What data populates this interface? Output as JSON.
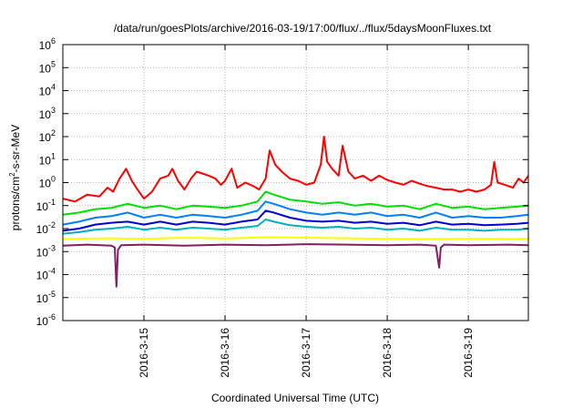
{
  "chart_data": {
    "type": "line",
    "title": "/data/run/goesPlots/archive/2016-03-19/17:00/flux/../flux/5daysMoonFluxes.txt",
    "xlabel": "Coordinated Universal Time (UTC)",
    "ylabel_parts": {
      "base": "protons/cm",
      "sup": "2",
      "rest": "-s-sr-MeV"
    },
    "xlim": [
      0,
      5.74
    ],
    "ylim_exp": [
      -6,
      6
    ],
    "yscale": "log",
    "grid": true,
    "x_ticks": [
      {
        "x": 1,
        "label": "2016-3-15"
      },
      {
        "x": 2,
        "label": "2016-3-16"
      },
      {
        "x": 3,
        "label": "2016-3-17"
      },
      {
        "x": 4,
        "label": "2016-3-18"
      },
      {
        "x": 5,
        "label": "2016-3-19"
      }
    ],
    "y_ticks": [
      {
        "exp": -6,
        "label": "10",
        "sup": "-6"
      },
      {
        "exp": -5,
        "label": "10",
        "sup": "-5"
      },
      {
        "exp": -4,
        "label": "10",
        "sup": "-4"
      },
      {
        "exp": -3,
        "label": "10",
        "sup": "-3"
      },
      {
        "exp": -2,
        "label": "10",
        "sup": "-2"
      },
      {
        "exp": -1,
        "label": "10",
        "sup": "-1"
      },
      {
        "exp": 0,
        "label": "10",
        "sup": "0"
      },
      {
        "exp": 1,
        "label": "10",
        "sup": "1"
      },
      {
        "exp": 2,
        "label": "10",
        "sup": "2"
      },
      {
        "exp": 3,
        "label": "10",
        "sup": "3"
      },
      {
        "exp": 4,
        "label": "10",
        "sup": "4"
      },
      {
        "exp": 5,
        "label": "10",
        "sup": "5"
      },
      {
        "exp": 6,
        "label": "10",
        "sup": "6"
      }
    ],
    "series": [
      {
        "color": "#ff0000",
        "x": [
          0,
          0.15,
          0.3,
          0.45,
          0.55,
          0.62,
          0.7,
          0.78,
          0.85,
          0.92,
          1.0,
          1.1,
          1.2,
          1.3,
          1.35,
          1.42,
          1.5,
          1.58,
          1.65,
          1.72,
          1.8,
          1.88,
          1.95,
          2.0,
          2.08,
          2.15,
          2.25,
          2.35,
          2.42,
          2.5,
          2.55,
          2.62,
          2.7,
          2.8,
          2.9,
          3.0,
          3.1,
          3.18,
          3.22,
          3.26,
          3.32,
          3.4,
          3.45,
          3.52,
          3.6,
          3.7,
          3.8,
          3.9,
          4.0,
          4.1,
          4.2,
          4.3,
          4.4,
          4.5,
          4.6,
          4.7,
          4.8,
          4.9,
          5.0,
          5.1,
          5.2,
          5.28,
          5.32,
          5.36,
          5.45,
          5.55,
          5.62,
          5.68,
          5.74
        ],
        "y": [
          0.2,
          0.15,
          0.3,
          0.25,
          0.6,
          0.4,
          1.5,
          4,
          1.2,
          0.5,
          0.2,
          0.4,
          1.5,
          2,
          4,
          1.2,
          0.5,
          1.5,
          3,
          2.5,
          2,
          1.5,
          0.8,
          1.2,
          4,
          0.6,
          1.0,
          0.7,
          0.5,
          1.5,
          25,
          6,
          3,
          1.5,
          1.2,
          0.8,
          1.0,
          6,
          100,
          8,
          4,
          2,
          40,
          3,
          1.5,
          2,
          1.2,
          2,
          1.3,
          1.0,
          0.8,
          1.2,
          0.9,
          0.7,
          0.6,
          0.5,
          0.5,
          0.4,
          0.5,
          0.4,
          0.5,
          0.8,
          8,
          1.0,
          0.8,
          0.6,
          1.5,
          1.0,
          2
        ]
      },
      {
        "color": "#00e000",
        "x": [
          0,
          0.2,
          0.4,
          0.6,
          0.8,
          1.0,
          1.2,
          1.4,
          1.6,
          1.8,
          2.0,
          2.2,
          2.4,
          2.5,
          2.6,
          2.8,
          3.0,
          3.2,
          3.4,
          3.6,
          3.8,
          4.0,
          4.2,
          4.4,
          4.6,
          4.8,
          5.0,
          5.2,
          5.4,
          5.6,
          5.74
        ],
        "y": [
          0.04,
          0.05,
          0.07,
          0.08,
          0.12,
          0.08,
          0.1,
          0.07,
          0.1,
          0.09,
          0.08,
          0.1,
          0.15,
          0.4,
          0.3,
          0.18,
          0.15,
          0.12,
          0.14,
          0.1,
          0.12,
          0.09,
          0.1,
          0.07,
          0.12,
          0.08,
          0.09,
          0.07,
          0.08,
          0.09,
          0.1
        ]
      },
      {
        "color": "#0080ff",
        "x": [
          0,
          0.2,
          0.4,
          0.6,
          0.8,
          1.0,
          1.2,
          1.4,
          1.6,
          1.8,
          2.0,
          2.2,
          2.4,
          2.5,
          2.6,
          2.8,
          3.0,
          3.2,
          3.4,
          3.6,
          3.8,
          4.0,
          4.2,
          4.4,
          4.6,
          4.8,
          5.0,
          5.2,
          5.4,
          5.6,
          5.74
        ],
        "y": [
          0.015,
          0.02,
          0.03,
          0.035,
          0.05,
          0.03,
          0.04,
          0.03,
          0.04,
          0.035,
          0.03,
          0.04,
          0.06,
          0.15,
          0.12,
          0.07,
          0.05,
          0.04,
          0.05,
          0.04,
          0.05,
          0.035,
          0.04,
          0.03,
          0.05,
          0.03,
          0.035,
          0.03,
          0.03,
          0.035,
          0.04
        ]
      },
      {
        "color": "#0000d0",
        "x": [
          0,
          0.2,
          0.4,
          0.6,
          0.8,
          1.0,
          1.2,
          1.4,
          1.6,
          1.8,
          2.0,
          2.2,
          2.4,
          2.5,
          2.6,
          2.8,
          3.0,
          3.2,
          3.4,
          3.6,
          3.8,
          4.0,
          4.2,
          4.4,
          4.6,
          4.8,
          5.0,
          5.2,
          5.4,
          5.6,
          5.74
        ],
        "y": [
          0.008,
          0.01,
          0.015,
          0.018,
          0.02,
          0.015,
          0.02,
          0.015,
          0.02,
          0.018,
          0.015,
          0.02,
          0.025,
          0.06,
          0.05,
          0.03,
          0.022,
          0.02,
          0.022,
          0.018,
          0.02,
          0.016,
          0.018,
          0.014,
          0.02,
          0.015,
          0.016,
          0.014,
          0.015,
          0.016,
          0.018
        ]
      },
      {
        "color": "#00b0c0",
        "x": [
          0,
          0.2,
          0.4,
          0.6,
          0.8,
          1.0,
          1.2,
          1.4,
          1.6,
          1.8,
          2.0,
          2.2,
          2.4,
          2.5,
          2.6,
          2.8,
          3.0,
          3.2,
          3.4,
          3.6,
          3.8,
          4.0,
          4.2,
          4.4,
          4.6,
          4.8,
          5.0,
          5.2,
          5.4,
          5.6,
          5.74
        ],
        "y": [
          0.006,
          0.007,
          0.009,
          0.01,
          0.012,
          0.009,
          0.011,
          0.009,
          0.011,
          0.01,
          0.009,
          0.011,
          0.013,
          0.025,
          0.02,
          0.014,
          0.012,
          0.011,
          0.012,
          0.01,
          0.011,
          0.009,
          0.01,
          0.008,
          0.011,
          0.009,
          0.009,
          0.008,
          0.009,
          0.009,
          0.01
        ]
      },
      {
        "color": "#ffff00",
        "x": [
          0,
          0.5,
          1.0,
          1.5,
          2.0,
          2.5,
          3.0,
          3.5,
          4.0,
          4.5,
          5.0,
          5.5,
          5.74
        ],
        "y": [
          0.0035,
          0.0038,
          0.0036,
          0.004,
          0.0037,
          0.0042,
          0.004,
          0.0038,
          0.0036,
          0.0035,
          0.0036,
          0.0035,
          0.0036
        ]
      },
      {
        "color": "#802060",
        "x": [
          0,
          0.3,
          0.6,
          0.64,
          0.66,
          0.68,
          0.72,
          1.0,
          1.5,
          2.0,
          2.5,
          3.0,
          3.5,
          4.0,
          4.4,
          4.6,
          4.64,
          4.66,
          4.7,
          5.0,
          5.5,
          5.74
        ],
        "y": [
          0.0018,
          0.002,
          0.0018,
          0.0015,
          3e-05,
          0.0012,
          0.0019,
          0.002,
          0.0018,
          0.002,
          0.0019,
          0.0021,
          0.002,
          0.0019,
          0.002,
          0.0018,
          0.0002,
          0.0015,
          0.002,
          0.0019,
          0.002,
          0.0019
        ]
      }
    ]
  }
}
